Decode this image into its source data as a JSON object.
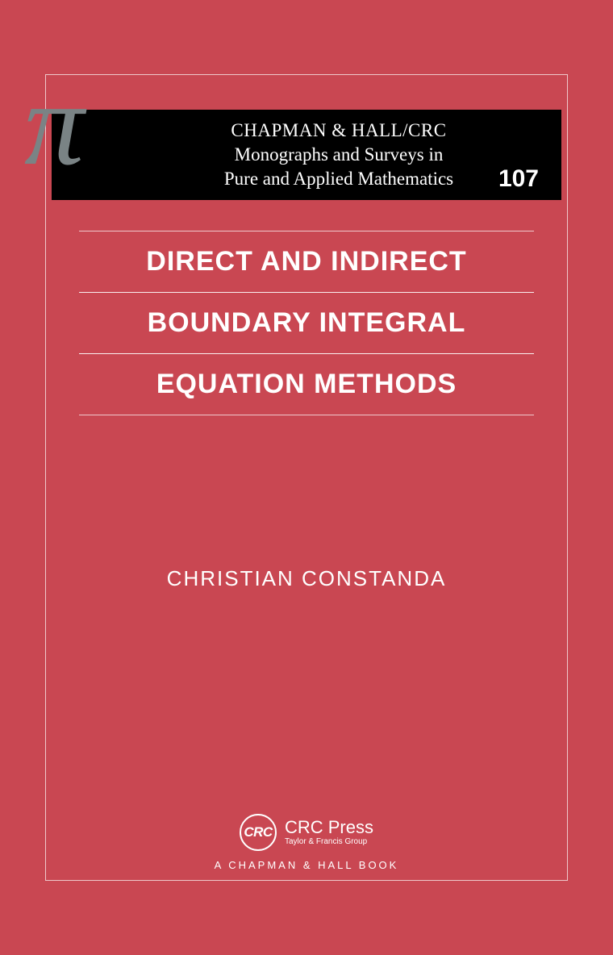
{
  "cover": {
    "background_color": "#c94752",
    "frame_color": "#ffffff",
    "header": {
      "background_color": "#000000",
      "text_color": "#ffffff",
      "pi_color": "#7a8385",
      "pi_symbol": "π",
      "publisher": "CHAPMAN & HALL/CRC",
      "series_line1": "Monographs and Surveys in",
      "series_line2": "Pure and Applied Mathematics",
      "volume": "107"
    },
    "title": {
      "line1": "DIRECT AND INDIRECT",
      "line2": "BOUNDARY INTEGRAL",
      "line3": "EQUATION METHODS",
      "color": "#ffffff",
      "fontsize": 34
    },
    "author": "CHRISTIAN CONSTANDA",
    "publisher_footer": {
      "crc_abbrev": "CRC",
      "crc_press": "CRC Press",
      "group": "Taylor & Francis Group",
      "imprint": "A CHAPMAN & HALL BOOK"
    }
  }
}
